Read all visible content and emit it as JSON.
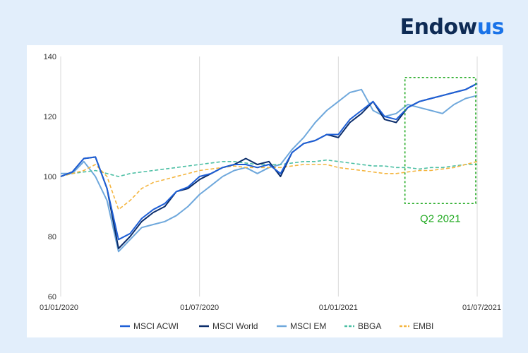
{
  "brand": {
    "part1": "Endow",
    "part2": "us"
  },
  "chart_data": {
    "type": "line",
    "y_ticks": [
      60,
      80,
      100,
      120,
      140
    ],
    "ylim": [
      60,
      140
    ],
    "x_tick_labels": [
      "01/01/2020",
      "01/07/2020",
      "01/01/2021",
      "01/07/2021"
    ],
    "grid": "vertical lines at x ticks",
    "legend_position": "bottom",
    "annotation": {
      "label": "Q2 2021",
      "type": "dashed box",
      "from": "2021-04",
      "to": "2021-07"
    },
    "colors": {
      "MSCI ACWI": "#1e5fd6",
      "MSCI World": "#0b2d6b",
      "MSCI EM": "#6fa8dc",
      "BBGA": "#4cbfa4",
      "EMBI": "#f4b53f",
      "annotation": "#22aa22"
    },
    "x": [
      "2020-01",
      "2020-01b",
      "2020-02",
      "2020-02b",
      "2020-03",
      "2020-03b",
      "2020-04",
      "2020-04b",
      "2020-05",
      "2020-05b",
      "2020-06",
      "2020-06b",
      "2020-07",
      "2020-07b",
      "2020-08",
      "2020-08b",
      "2020-09",
      "2020-09b",
      "2020-10",
      "2020-10b",
      "2020-11",
      "2020-11b",
      "2020-12",
      "2020-12b",
      "2021-01",
      "2021-01b",
      "2021-02",
      "2021-02b",
      "2021-03",
      "2021-03b",
      "2021-04",
      "2021-04b",
      "2021-05",
      "2021-05b",
      "2021-06",
      "2021-06b",
      "2021-07"
    ],
    "series": [
      {
        "name": "MSCI ACWI",
        "style": "solid",
        "values": [
          100,
          101.5,
          106,
          106.5,
          96,
          79,
          81,
          86,
          89,
          91,
          95,
          96.5,
          100,
          101,
          103,
          104,
          104,
          103,
          104,
          101,
          108,
          111,
          112,
          114,
          114,
          119,
          122,
          125,
          120,
          119,
          123,
          125,
          126,
          127,
          128,
          129,
          131
        ]
      },
      {
        "name": "MSCI World",
        "style": "solid",
        "values": [
          100,
          101.5,
          106,
          106.5,
          96,
          76,
          80,
          85,
          88,
          90,
          95,
          96,
          99,
          101,
          103,
          104,
          106,
          104,
          105,
          100,
          108,
          111,
          112,
          114,
          113,
          118,
          121,
          125,
          119,
          118,
          123,
          125,
          126,
          127,
          128,
          129,
          131
        ]
      },
      {
        "name": "MSCI EM",
        "style": "solid",
        "values": [
          101,
          101,
          105,
          100,
          92,
          75,
          79,
          83,
          84,
          85,
          87,
          90,
          94,
          97,
          100,
          102,
          103,
          101,
          103,
          104,
          109,
          113,
          118,
          122,
          125,
          128,
          129,
          122,
          120,
          121,
          124,
          123,
          122,
          121,
          124,
          126,
          127
        ]
      },
      {
        "name": "BBGA",
        "style": "dashed",
        "values": [
          100,
          101,
          101.5,
          102,
          101,
          100,
          101,
          101.5,
          102,
          102.5,
          103,
          103.5,
          104,
          104.5,
          105,
          105,
          104.5,
          104,
          104,
          104,
          104.5,
          105,
          105,
          105.5,
          105,
          104.5,
          104,
          103.5,
          103.5,
          103,
          103,
          102.5,
          103,
          103,
          103.5,
          104,
          104
        ]
      },
      {
        "name": "EMBI",
        "style": "dashed",
        "values": [
          100,
          101,
          102,
          104,
          100,
          89,
          92,
          96,
          98,
          99,
          100,
          101,
          102,
          102.5,
          103,
          103.5,
          103,
          103,
          103,
          103,
          103.5,
          104,
          104,
          104,
          103,
          102.5,
          102,
          101.5,
          101,
          101,
          101.5,
          102,
          102,
          102.5,
          103,
          104,
          105
        ]
      }
    ]
  }
}
